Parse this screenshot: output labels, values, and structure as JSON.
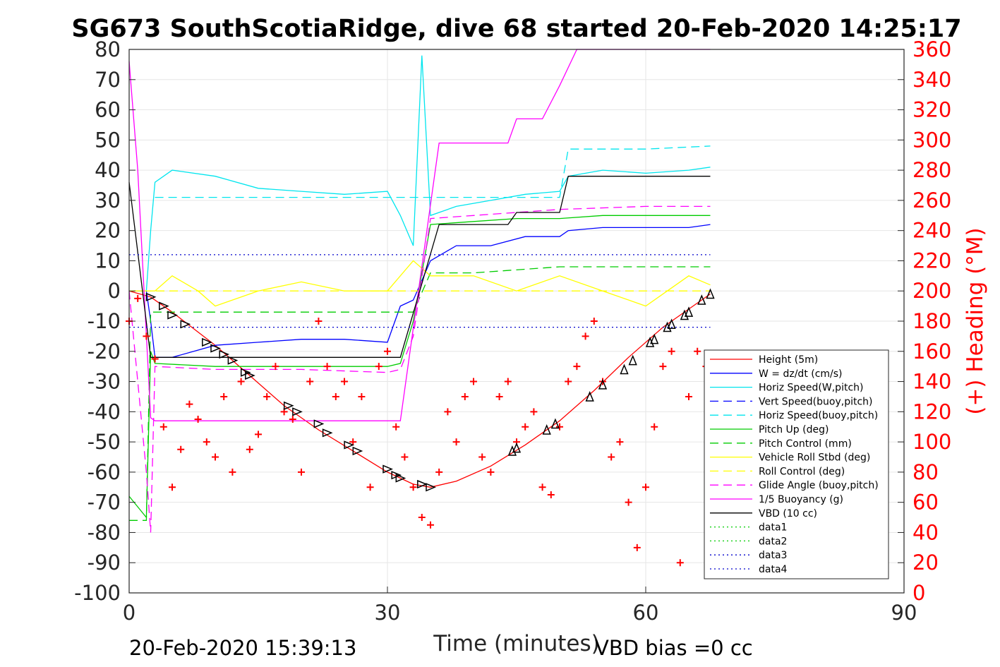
{
  "chart_data": {
    "type": "line",
    "title": "SG673 SouthScotiaRidge, dive 68 started 20-Feb-2020 14:25:17",
    "xlabel": "Time (minutes)",
    "ylabel_right": "(+) Heading (°M)",
    "xlim": [
      0,
      90
    ],
    "ylim": [
      -100,
      80
    ],
    "y2lim": [
      0,
      360
    ],
    "x_ticks": [
      "0",
      "30",
      "60",
      "90"
    ],
    "y_ticks": [
      "80",
      "70",
      "60",
      "50",
      "40",
      "30",
      "20",
      "10",
      "0",
      "-10",
      "-20",
      "-30",
      "-40",
      "-50",
      "-60",
      "-70",
      "-80",
      "-90",
      "-100"
    ],
    "y2_ticks": [
      "360",
      "340",
      "320",
      "300",
      "280",
      "260",
      "240",
      "220",
      "200",
      "180",
      "160",
      "140",
      "120",
      "100",
      "80",
      "60",
      "40",
      "20",
      "0"
    ],
    "grid": true,
    "legend_position": "lower-right",
    "footer_left": "20-Feb-2020 15:39:13",
    "footer_right": "VBD bias =0 cc",
    "series": [
      {
        "name": "Height (5m)",
        "color": "#ff0000",
        "style": "solid",
        "x": [
          0,
          2.5,
          5,
          10,
          14,
          18,
          22,
          26,
          30,
          33,
          35,
          38,
          42,
          46,
          50,
          54,
          58,
          62,
          65,
          67.5
        ],
        "y": [
          0,
          -2,
          -7,
          -18,
          -28,
          -38,
          -46,
          -53,
          -60,
          -64,
          -65,
          -63,
          -58,
          -51,
          -43,
          -33,
          -22,
          -12,
          -6,
          -1
        ]
      },
      {
        "name": "W = dz/dt (cm/s)",
        "color": "#0000ff",
        "style": "solid",
        "x": [
          0,
          2,
          2.5,
          3,
          5,
          10,
          15,
          20,
          25,
          30,
          31.5,
          33,
          35,
          38,
          42,
          46,
          50,
          51,
          55,
          60,
          65,
          67.5
        ],
        "y": [
          0,
          0,
          -10,
          -22,
          -22,
          -18,
          -17,
          -16,
          -16,
          -17,
          -5,
          -3,
          10,
          15,
          15,
          18,
          18,
          20,
          21,
          21,
          21,
          22
        ]
      },
      {
        "name": "Horiz Speed(W,pitch)",
        "color": "#00e5ee",
        "style": "solid",
        "x": [
          0,
          2,
          2.5,
          3,
          5,
          10,
          15,
          20,
          25,
          30,
          31.5,
          33,
          34,
          35,
          38,
          42,
          46,
          50,
          51,
          55,
          60,
          65,
          67.5
        ],
        "y": [
          0,
          0,
          20,
          36,
          40,
          38,
          34,
          33,
          32,
          33,
          25,
          15,
          78,
          25,
          28,
          30,
          32,
          33,
          38,
          40,
          39,
          40,
          41
        ]
      },
      {
        "name": "Vert Speed(buoy,pitch)",
        "color": "#0000ff",
        "style": "dashed",
        "x": [],
        "y": []
      },
      {
        "name": "Horiz Speed(buoy,pitch)",
        "color": "#00e5ee",
        "style": "dashed",
        "x": [
          3,
          10,
          20,
          30,
          31.5,
          35,
          45,
          50,
          51,
          60,
          67.5
        ],
        "y": [
          31,
          31,
          31,
          31,
          31,
          31,
          31,
          31,
          47,
          47,
          48
        ]
      },
      {
        "name": "Pitch Up (deg)",
        "color": "#00cc00",
        "style": "solid",
        "x": [
          0,
          2,
          2.5,
          3,
          10,
          20,
          30,
          31.5,
          33,
          35,
          40,
          45,
          50,
          55,
          60,
          65,
          67.5
        ],
        "y": [
          -68,
          -75,
          -20,
          -24,
          -25,
          -25,
          -25,
          -24,
          -10,
          22,
          23,
          24,
          24,
          25,
          25,
          25,
          25
        ]
      },
      {
        "name": "Pitch Control (mm)",
        "color": "#00cc00",
        "style": "dashed",
        "x": [
          0,
          2,
          2.5,
          3,
          31.5,
          33,
          35,
          40,
          50,
          67.5
        ],
        "y": [
          -76,
          -76,
          -7,
          -7,
          -7,
          -7,
          6,
          6,
          8,
          8
        ]
      },
      {
        "name": "Vehicle Roll Stbd (deg)",
        "color": "#ffff00",
        "style": "solid",
        "x": [
          0,
          3,
          5,
          8,
          10,
          15,
          20,
          25,
          30,
          33,
          35,
          40,
          45,
          50,
          55,
          60,
          65,
          67.5
        ],
        "y": [
          0,
          0,
          5,
          0,
          -5,
          0,
          3,
          0,
          0,
          10,
          5,
          5,
          0,
          5,
          0,
          -5,
          5,
          2
        ]
      },
      {
        "name": "Roll Control (deg)",
        "color": "#ffff00",
        "style": "dashed",
        "x": [
          0,
          67.5
        ],
        "y": [
          0,
          0
        ]
      },
      {
        "name": "Glide Angle (buoy,pitch)",
        "color": "#ff00ff",
        "style": "dashed",
        "x": [
          0,
          2,
          2.5,
          3,
          10,
          20,
          30,
          31.5,
          33,
          35,
          40,
          50,
          60,
          67.5
        ],
        "y": [
          0,
          -60,
          -80,
          -25,
          -26,
          -26,
          -27,
          -26,
          -15,
          24,
          25,
          27,
          28,
          28
        ]
      },
      {
        "name": "1/5 Buoyancy (g)",
        "color": "#ff00ff",
        "style": "solid",
        "x": [
          0,
          1,
          2.5,
          3,
          20,
          31.5,
          36,
          39,
          44,
          45,
          48,
          50,
          52,
          67.5
        ],
        "y": [
          76,
          40,
          -42,
          -43,
          -43,
          -43,
          49,
          49,
          49,
          57,
          57,
          68,
          80,
          80
        ]
      },
      {
        "name": "VBD (10 cc)",
        "color": "#000000",
        "style": "solid",
        "x": [
          0,
          2.5,
          3,
          31.5,
          36,
          44,
          45,
          50,
          51,
          67.5
        ],
        "y": [
          36,
          -22,
          -22,
          -22,
          22,
          22,
          26,
          26,
          38,
          38
        ]
      },
      {
        "name": "data1",
        "color": "#00cc00",
        "style": "dotted",
        "x": [],
        "y": []
      },
      {
        "name": "data2",
        "color": "#00cc00",
        "style": "dotted",
        "x": [],
        "y": []
      },
      {
        "name": "data3",
        "color": "#0000cc",
        "style": "dotted",
        "x": [
          0,
          67.5
        ],
        "y": [
          12,
          12
        ]
      },
      {
        "name": "data4",
        "color": "#0000cc",
        "style": "dotted",
        "x": [
          0,
          67.5
        ],
        "y": [
          -12,
          -12
        ]
      }
    ],
    "heading": {
      "axis": "right",
      "color": "#ff0000",
      "marker": "plus",
      "x": [
        0,
        1,
        2,
        3,
        4,
        5,
        6,
        7,
        8,
        9,
        10,
        11,
        12,
        13,
        14,
        15,
        16,
        17,
        18,
        19,
        20,
        21,
        22,
        23,
        24,
        25,
        26,
        27,
        28,
        29,
        30,
        31,
        32,
        33,
        34,
        35,
        36,
        37,
        38,
        39,
        40,
        41,
        42,
        43,
        44,
        45,
        46,
        47,
        48,
        49,
        50,
        51,
        52,
        53,
        54,
        55,
        56,
        57,
        58,
        59,
        60,
        61,
        62,
        63,
        64,
        65,
        66,
        67
      ],
      "y": [
        180,
        195,
        170,
        155,
        110,
        70,
        95,
        125,
        115,
        100,
        90,
        130,
        80,
        140,
        95,
        105,
        130,
        150,
        120,
        115,
        80,
        140,
        180,
        150,
        130,
        140,
        100,
        130,
        70,
        150,
        160,
        110,
        90,
        70,
        50,
        45,
        80,
        120,
        100,
        130,
        140,
        90,
        80,
        130,
        140,
        100,
        110,
        120,
        70,
        65,
        110,
        140,
        150,
        170,
        180,
        140,
        90,
        100,
        60,
        30,
        70,
        110,
        150,
        160,
        20,
        130,
        160,
        150
      ]
    },
    "glide_markers": {
      "style": "triangles",
      "x": [
        2.5,
        4,
        5,
        6.5,
        9,
        10,
        11,
        12,
        13.5,
        14,
        18.5,
        19.5,
        22,
        23,
        25.5,
        26.5,
        30,
        31,
        31.5,
        34,
        35,
        44.5,
        45,
        48.5,
        49.5,
        53.5,
        55,
        57.5,
        58.5,
        60.5,
        61,
        62.5,
        63,
        64.5,
        65,
        66.5,
        67.5
      ],
      "y": [
        -2,
        -5,
        -8,
        -11,
        -17,
        -19,
        -21,
        -23,
        -27,
        -28,
        -38,
        -40,
        -44,
        -47,
        -51,
        -53,
        -59,
        -61,
        -62,
        -64,
        -65,
        -53,
        -52,
        -46,
        -44,
        -35,
        -31,
        -26,
        -23,
        -17,
        -16,
        -12,
        -11,
        -8,
        -7,
        -3,
        -1
      ]
    }
  }
}
